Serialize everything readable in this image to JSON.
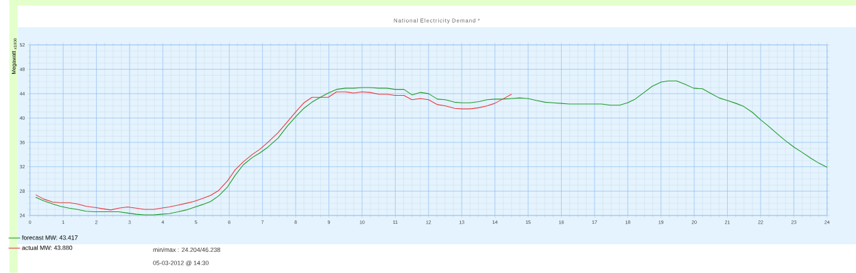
{
  "chart_data": {
    "type": "line",
    "title": "National Electricity Demand *",
    "ylabel": "Megawatt $_{x1000}$",
    "annotations": [
      "min/max : 24.204/46.238",
      "05-03-2012 @ 14:30"
    ],
    "xlim": [
      0,
      24
    ],
    "ylim": [
      24,
      52
    ],
    "xticks": [
      0,
      1,
      2,
      3,
      4,
      5,
      6,
      7,
      8,
      9,
      10,
      11,
      12,
      13,
      14,
      15,
      16,
      17,
      18,
      19,
      20,
      21,
      22,
      23,
      24
    ],
    "yticks": [
      24,
      28,
      32,
      36,
      40,
      44,
      48,
      52
    ],
    "grid": true,
    "legend": "bottom left",
    "series": [
      {
        "name": "forecast MW: 43.417",
        "color": "#1f9a2a",
        "x": [
          0.17,
          0.41,
          0.68,
          0.91,
          1.18,
          1.42,
          1.69,
          1.96,
          2.2,
          2.43,
          2.67,
          2.94,
          3.2,
          3.45,
          3.72,
          3.95,
          4.19,
          4.46,
          4.7,
          4.93,
          5.2,
          5.44,
          5.68,
          5.95,
          6.18,
          6.42,
          6.69,
          6.93,
          7.16,
          7.47,
          7.74,
          8.0,
          8.25,
          8.49,
          8.74,
          8.98,
          9.23,
          9.5,
          9.74,
          10.0,
          10.24,
          10.51,
          10.75,
          10.99,
          11.26,
          11.5,
          11.76,
          12.0,
          12.27,
          12.51,
          12.78,
          13.01,
          13.25,
          13.52,
          13.76,
          13.99,
          14.23,
          14.5,
          14.74,
          15.0,
          15.24,
          15.51,
          15.75,
          16.0,
          16.24,
          16.47,
          16.74,
          16.98,
          17.21,
          17.48,
          17.75,
          17.99,
          18.22,
          18.49,
          18.73,
          19.0,
          19.23,
          19.47,
          19.74,
          19.98,
          20.25,
          20.48,
          20.75,
          20.99,
          21.26,
          21.49,
          21.76,
          22.0,
          22.23,
          22.5,
          22.74,
          23.01,
          23.24,
          23.51,
          23.75,
          24.0
        ],
        "values": [
          27.0,
          26.4,
          25.9,
          25.5,
          25.2,
          25.0,
          24.7,
          24.6,
          24.6,
          24.6,
          24.6,
          24.4,
          24.2,
          24.1,
          24.1,
          24.2,
          24.3,
          24.6,
          24.9,
          25.3,
          25.8,
          26.3,
          27.2,
          28.7,
          30.6,
          32.3,
          33.5,
          34.3,
          35.2,
          36.7,
          38.6,
          40.2,
          41.6,
          42.6,
          43.4,
          44.1,
          44.7,
          44.9,
          44.9,
          45.0,
          45.0,
          44.9,
          44.9,
          44.7,
          44.7,
          43.8,
          44.2,
          44.0,
          43.1,
          43.0,
          42.6,
          42.5,
          42.5,
          42.7,
          43.0,
          43.1,
          43.1,
          43.2,
          43.3,
          43.2,
          42.9,
          42.6,
          42.5,
          42.4,
          42.3,
          42.3,
          42.3,
          42.3,
          42.3,
          42.1,
          42.1,
          42.5,
          43.1,
          44.2,
          45.2,
          45.9,
          46.1,
          46.1,
          45.5,
          44.9,
          44.8,
          44.1,
          43.3,
          42.9,
          42.4,
          41.9,
          40.9,
          39.7,
          38.7,
          37.4,
          36.3,
          35.2,
          34.4,
          33.4,
          32.6,
          31.9
        ]
      },
      {
        "name": "actual MW: 43.880",
        "color": "#e8383c",
        "x": [
          0.17,
          0.41,
          0.68,
          0.91,
          1.18,
          1.42,
          1.69,
          1.96,
          2.2,
          2.43,
          2.67,
          2.94,
          3.2,
          3.45,
          3.72,
          3.95,
          4.19,
          4.46,
          4.7,
          4.93,
          5.2,
          5.44,
          5.68,
          5.95,
          6.18,
          6.42,
          6.69,
          6.93,
          7.16,
          7.47,
          7.74,
          8.0,
          8.25,
          8.49,
          8.74,
          8.98,
          9.23,
          9.5,
          9.74,
          10.0,
          10.24,
          10.51,
          10.75,
          10.99,
          11.26,
          11.5,
          11.76,
          12.0,
          12.27,
          12.51,
          12.78,
          13.01,
          13.25,
          13.52,
          13.76,
          13.99,
          14.23,
          14.5
        ],
        "values": [
          27.4,
          26.7,
          26.2,
          26.1,
          26.1,
          25.9,
          25.5,
          25.3,
          25.1,
          24.9,
          25.2,
          25.4,
          25.2,
          25.0,
          25.0,
          25.2,
          25.4,
          25.7,
          26.0,
          26.3,
          26.8,
          27.3,
          28.1,
          29.7,
          31.5,
          32.8,
          34.0,
          34.9,
          36.0,
          37.6,
          39.3,
          41.0,
          42.5,
          43.4,
          43.4,
          43.4,
          44.3,
          44.3,
          44.1,
          44.3,
          44.2,
          43.9,
          43.9,
          43.7,
          43.7,
          43.0,
          43.2,
          43.0,
          42.2,
          42.0,
          41.6,
          41.5,
          41.5,
          41.7,
          42.0,
          42.4,
          43.1,
          43.9
        ]
      }
    ]
  }
}
